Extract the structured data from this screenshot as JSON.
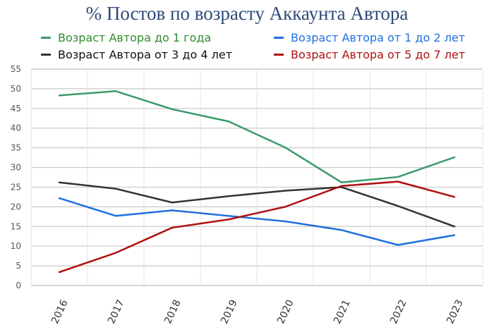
{
  "chart_data": {
    "type": "line",
    "title": "% Постов по возрасту Аккаунта Автора",
    "xlabel": "",
    "ylabel": "",
    "categories": [
      "2016",
      "2017",
      "2018",
      "2019",
      "2020",
      "2021",
      "2022",
      "2023"
    ],
    "ylim": [
      0,
      55
    ],
    "yticks": [
      "0",
      "5",
      "10",
      "15",
      "20",
      "25",
      "30",
      "35",
      "40",
      "45",
      "50",
      "55"
    ],
    "grid": true,
    "legend_position": "top",
    "series": [
      {
        "name": "Возраст Автора до 1 года",
        "color": "#3a9a6a",
        "text_color": "#2e8b2e",
        "values": [
          48.3,
          49.4,
          44.8,
          41.7,
          35.1,
          26.2,
          27.6,
          32.6
        ]
      },
      {
        "name": "Возраст Автора от 1 до 2 лет",
        "color": "#1f6fe0",
        "text_color": "#1f6fe0",
        "values": [
          22.2,
          17.7,
          19.1,
          17.7,
          16.3,
          14.1,
          10.3,
          12.8
        ]
      },
      {
        "name": "Возраст Автора от 3 до 4 лет",
        "color": "#333333",
        "text_color": "#111111",
        "values": [
          26.2,
          24.6,
          21.1,
          22.7,
          24.1,
          25.0,
          20.2,
          15.0
        ]
      },
      {
        "name": "Возраст Автора от 5 до 7 лет",
        "color": "#b01010",
        "text_color": "#b01010",
        "values": [
          3.4,
          8.3,
          14.7,
          16.8,
          20.0,
          25.3,
          26.4,
          22.5
        ]
      }
    ]
  }
}
